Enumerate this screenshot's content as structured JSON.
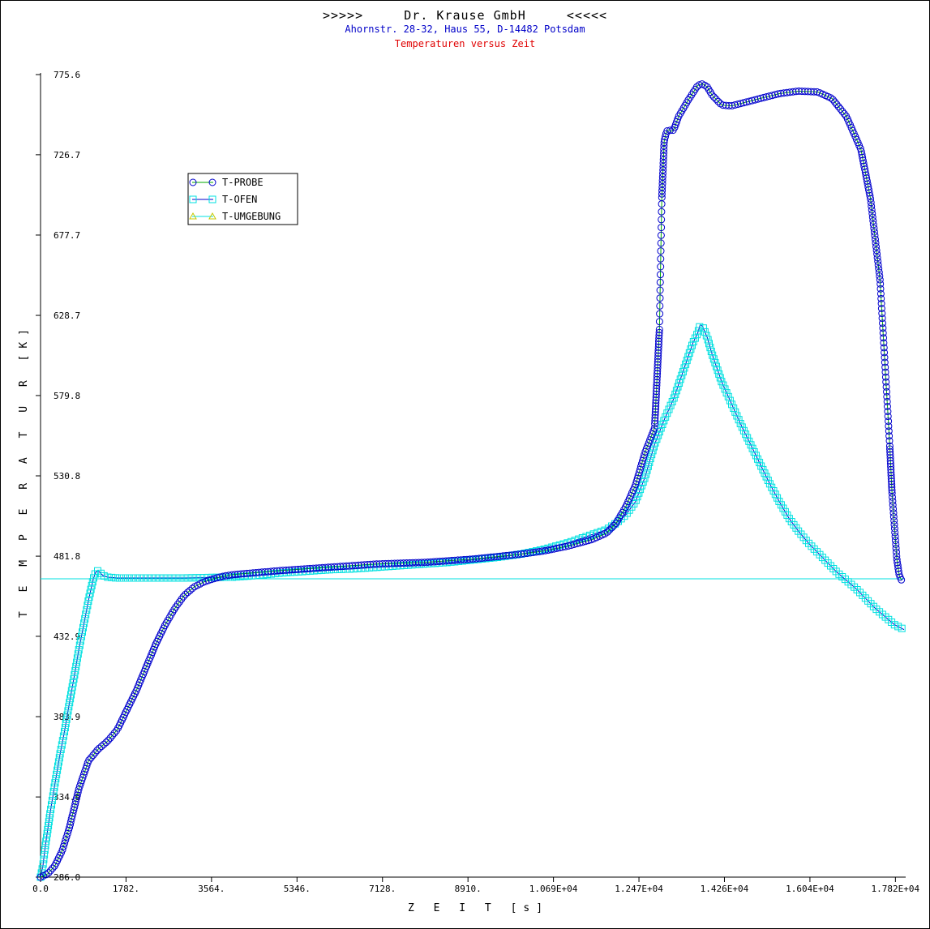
{
  "header": {
    "title": ">>>>>     Dr. Krause GmbH     <<<<<",
    "subtitle": "Ahornstr. 28-32, Haus 55, D-14482 Potsdam",
    "subtitle2": "Temperaturen versus Zeit"
  },
  "chart_data": {
    "type": "line",
    "xlabel": "Z E I T [s]",
    "ylabel": "T E M P E R A T U R [K]",
    "xlim": [
      0,
      18000
    ],
    "ylim": [
      286.0,
      775.6
    ],
    "x_ticks": [
      "0.0",
      "1782.",
      "3564.",
      "5346.",
      "7128.",
      "8910.",
      "1.069E+04",
      "1.247E+04",
      "1.426E+04",
      "1.604E+04",
      "1.782E+04"
    ],
    "x_tick_values": [
      0,
      1782,
      3564,
      5346,
      7128,
      8910,
      10692,
      12474,
      14256,
      16038,
      17820
    ],
    "y_ticks": [
      "286.0",
      "334.9",
      "383.9",
      "432.9",
      "481.8",
      "530.8",
      "579.8",
      "628.7",
      "677.7",
      "726.7",
      "775.6"
    ],
    "y_tick_values": [
      286.0,
      334.9,
      383.9,
      432.9,
      481.8,
      530.8,
      579.8,
      628.7,
      677.7,
      726.7,
      775.6
    ],
    "grid": false,
    "legend_position": "upper-left",
    "series": [
      {
        "name": "T-PROBE",
        "color": "#0000cc",
        "marker": "circle",
        "line_color": "#00aa00",
        "x": [
          0,
          150,
          300,
          450,
          600,
          800,
          1000,
          1200,
          1400,
          1600,
          1800,
          2000,
          2200,
          2400,
          2600,
          2800,
          3000,
          3200,
          3400,
          3600,
          3800,
          4000,
          4200,
          4400,
          4600,
          5000,
          5500,
          6000,
          6500,
          7000,
          7500,
          8000,
          8500,
          9000,
          9500,
          10000,
          10500,
          11000,
          11500,
          11800,
          12000,
          12200,
          12400,
          12600,
          12800,
          12900,
          12950,
          13000,
          13050,
          13100,
          13150,
          13200,
          13300,
          13500,
          13700,
          13800,
          13900,
          14000,
          14200,
          14400,
          14600,
          15000,
          15400,
          15800,
          16200,
          16500,
          16800,
          17100,
          17300,
          17500,
          17600,
          17700,
          17750,
          17800,
          17850,
          17900,
          17950
        ],
        "y": [
          286.0,
          288.0,
          293.0,
          302.0,
          316.0,
          340.0,
          357.0,
          364.0,
          369.0,
          376.0,
          388.0,
          400.0,
          414.0,
          428.0,
          440.0,
          450.0,
          458.0,
          463.0,
          466.0,
          468.0,
          469.5,
          470.5,
          471.0,
          471.5,
          472.0,
          473.0,
          474.0,
          475.0,
          476.0,
          477.0,
          477.5,
          478.0,
          479.0,
          480.0,
          481.5,
          483.0,
          485.0,
          488.0,
          492.0,
          496.0,
          502.0,
          512.0,
          525.0,
          545.0,
          560.0,
          620.0,
          700.0,
          735.0,
          741.0,
          742.0,
          741.0,
          742.0,
          750.0,
          760.0,
          769.0,
          770.0,
          768.0,
          763.0,
          757.0,
          756.5,
          758.0,
          761.0,
          764.0,
          765.5,
          765.0,
          761.0,
          750.0,
          730.0,
          700.0,
          650.0,
          600.0,
          550.0,
          520.0,
          500.0,
          480.0,
          470.0,
          467.0
        ]
      },
      {
        "name": "T-OFEN",
        "color": "#00e0e0",
        "marker": "square",
        "line_color": "#0000cc",
        "x": [
          0,
          50,
          100,
          200,
          300,
          400,
          500,
          600,
          700,
          800,
          900,
          1000,
          1100,
          1150,
          1200,
          1300,
          1400,
          1600,
          1800,
          2000,
          2500,
          3000,
          3500,
          4000,
          4500,
          5000,
          5500,
          6000,
          6500,
          7000,
          7500,
          8000,
          8500,
          9000,
          9500,
          10000,
          10500,
          11000,
          11500,
          11800,
          12000,
          12200,
          12400,
          12600,
          12800,
          13000,
          13200,
          13400,
          13600,
          13700,
          13750,
          13800,
          13900,
          14000,
          14200,
          14400,
          14600,
          14800,
          15000,
          15200,
          15400,
          15600,
          15800,
          16000,
          16200,
          16400,
          16600,
          16800,
          17000,
          17200,
          17400,
          17600,
          17800,
          18000
        ],
        "y": [
          286.0,
          293.0,
          305.0,
          325.0,
          343.0,
          360.0,
          375.0,
          392.0,
          408.0,
          425.0,
          440.0,
          455.0,
          468.0,
          472.0,
          473.0,
          470.0,
          469.0,
          468.5,
          468.5,
          468.5,
          468.5,
          468.5,
          468.8,
          469.0,
          470.0,
          471.5,
          472.5,
          473.5,
          474.0,
          475.0,
          476.0,
          477.0,
          478.0,
          479.5,
          481.0,
          483.0,
          486.0,
          490.0,
          495.0,
          498.0,
          502.0,
          507.0,
          515.0,
          530.0,
          550.0,
          565.0,
          578.0,
          595.0,
          612.0,
          618.0,
          623.0,
          622.0,
          615.0,
          605.0,
          588.0,
          575.0,
          562.0,
          550.0,
          538.0,
          526.0,
          515.0,
          505.0,
          497.0,
          490.0,
          484.0,
          478.0,
          472.0,
          467.0,
          462.0,
          456.0,
          450.0,
          445.0,
          440.0,
          437.0
        ]
      },
      {
        "name": "T-UMGEBUNG",
        "color": "#00e0e0",
        "marker": "triangle",
        "line_color": "#00e0e0",
        "x": [
          0,
          18000
        ],
        "y": [
          468.0,
          468.0
        ]
      }
    ]
  }
}
